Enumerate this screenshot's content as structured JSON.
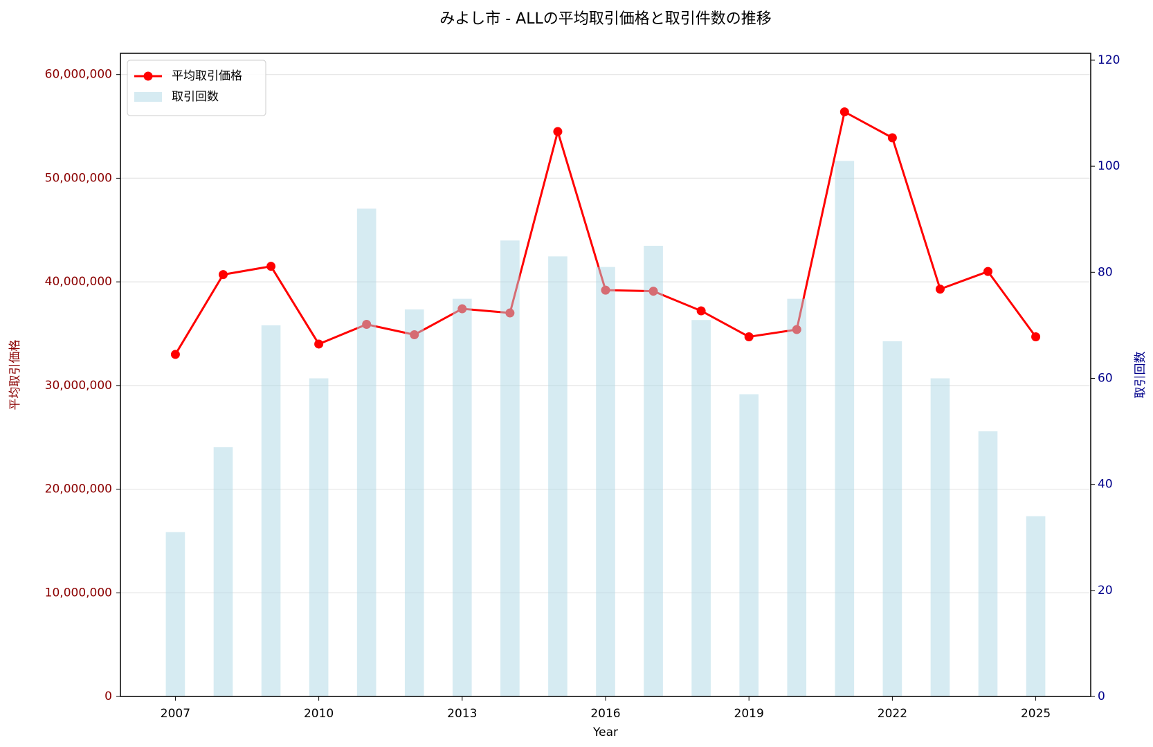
{
  "chart_data": {
    "type": "combo",
    "title": "みよし市 - ALLの平均取引価格と取引件数の推移",
    "xlabel": "Year",
    "ylabel": "平均取引価格",
    "y2label": "取引回数",
    "ylabel_color": "#8b0000",
    "y2label_color": "#00008b",
    "x": [
      2007,
      2008,
      2009,
      2010,
      2011,
      2012,
      2013,
      2014,
      2015,
      2016,
      2017,
      2018,
      2019,
      2020,
      2021,
      2022,
      2023,
      2024,
      2025
    ],
    "series": [
      {
        "name": "平均取引価格",
        "type": "line",
        "color": "#ff0000",
        "axis": "y",
        "values": [
          33000000,
          40700000,
          41500000,
          34000000,
          35900000,
          34900000,
          37400000,
          37000000,
          54500000,
          39200000,
          39100000,
          37200000,
          34700000,
          35400000,
          56400000,
          53900000,
          39300000,
          41000000,
          34700000
        ]
      },
      {
        "name": "取引回数",
        "type": "bar",
        "color": "#add8e6",
        "axis": "y2",
        "values": [
          31,
          47,
          70,
          60,
          92,
          73,
          75,
          86,
          83,
          81,
          85,
          71,
          57,
          75,
          101,
          67,
          60,
          50,
          34
        ]
      }
    ],
    "xlim": [
      2005.85,
      2026.15
    ],
    "xticks": [
      2007,
      2010,
      2013,
      2016,
      2019,
      2022,
      2025
    ],
    "ylim": [
      0,
      62050000
    ],
    "yticks": [
      0,
      {
        "value": 10000000,
        "label": "10,000,000"
      },
      {
        "value": 20000000,
        "label": "20,000,000"
      },
      {
        "value": 30000000,
        "label": "30,000,000"
      },
      {
        "value": 40000000,
        "label": "40,000,000"
      },
      {
        "value": 50000000,
        "label": "50,000,000"
      },
      {
        "value": 60000000,
        "label": "60,000,000"
      }
    ],
    "y2lim": [
      0,
      121.3
    ],
    "y2ticks": [
      0,
      20,
      40,
      60,
      80,
      100,
      120
    ],
    "grid": true,
    "legend": "upper left"
  }
}
